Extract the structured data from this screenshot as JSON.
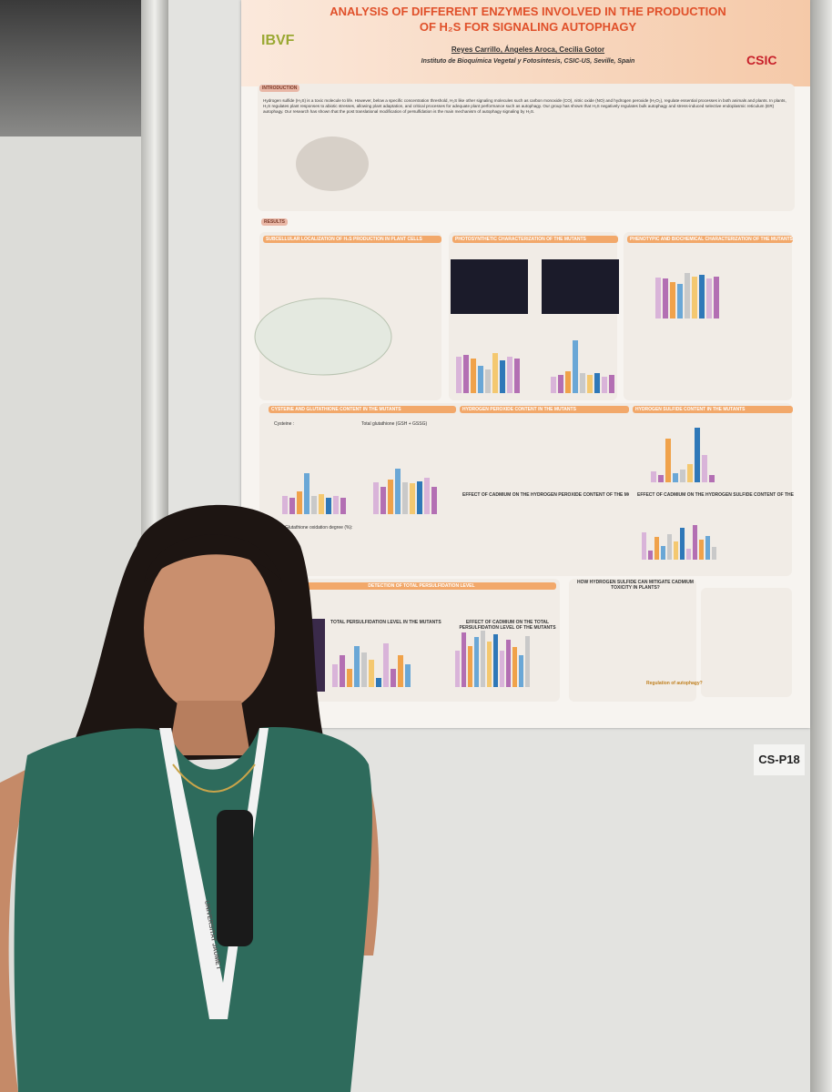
{
  "poster": {
    "logo_left": "IBVF",
    "logo_right": "CSIC",
    "title": "ANALYSIS OF DIFFERENT ENZYMES INVOLVED IN THE PRODUCTION OF H₂S FOR SIGNALING AUTOPHAGY",
    "authors": "Reyes Carrillo, Ángeles Aroca, Cecilia Gotor",
    "affiliation": "Instituto de Bioquímica Vegetal y Fotosíntesis, CSIC-US, Seville, Spain",
    "introduction": {
      "heading": "INTRODUCTION",
      "text": "Hydrogen sulfide (H₂S) is a toxic molecule to life. However, below a specific concentration threshold, H₂S like other signaling molecules such as carbon monoxide (CO), nitric oxide (NO) and hydrogen peroxide (H₂O₂), regulate essential processes in both animals and plants. In plants, H₂S regulates plant responses to abiotic stresses, allowing plant adaptation, and critical processes for adequate plant performance such as autophagy. Our group has shown that H₂S negatively regulates bulk autophagy and stress-induced selective endoplasmic reticulum (ER) autophagy. Our research has shown that the post translational modification of persulfidation is the main mechanism of autophagy signaling by H₂S."
    },
    "results": {
      "heading": "RESULTS",
      "panels": [
        "SUBCELLULAR LOCALIZATION OF H₂S PRODUCTION IN PLANT CELLS",
        "PHOTOSYNTHETIC CHARACTERIZATION OF THE MUTANTS",
        "PHENOTYPIC AND BIOCHEMICAL CHARACTERIZATION OF THE MUTANTS",
        "CYSTEINE AND GLUTATHIONE CONTENT IN THE MUTANTS",
        "HYDROGEN PEROXIDE CONTENT IN THE MUTANTS",
        "HYDROGEN SULFIDE CONTENT IN THE MUTANTS",
        "EFFECT OF CADMIUM ON THE HYDROGEN PEROXIDE CONTENT OF THE MUTANTS",
        "EFFECT OF CADMIUM ON THE HYDROGEN SULFIDE CONTENT OF THE MUTANTS",
        "DETECTION OF TOTAL PERSULFIDATION LEVEL",
        "HOW HYDROGEN SULFIDE CAN MITIGATE CADMIUM TOXICITY IN PLANTS?",
        "TOTAL PERSULFIDATION LEVEL IN THE MUTANTS",
        "EFFECT OF CADMIUM ON THE TOTAL PERSULFIDATION LEVEL OF THE MUTANTS"
      ],
      "labels": [
        "Cysteine :",
        "Total glutathione (GSH + GSSG)",
        "Glutathione oxidation degree (%):",
        "Regulation of autophagy?"
      ]
    }
  },
  "board_label": "CS-P18",
  "lanyard": "UNIVERSITAT JAUME I"
}
